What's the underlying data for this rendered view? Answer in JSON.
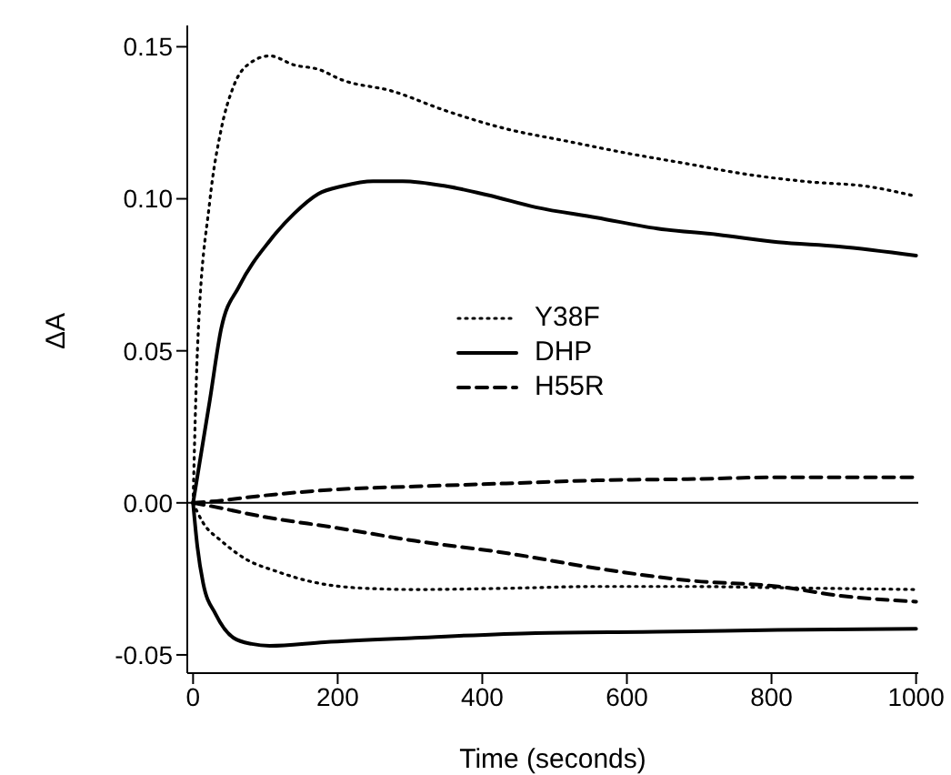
{
  "chart_data": {
    "type": "line",
    "xlabel": "Time (seconds)",
    "ylabel": "ΔA",
    "xlim": [
      -8,
      1003
    ],
    "ylim": [
      -0.056,
      0.157
    ],
    "xticks": [
      0,
      200,
      400,
      600,
      800,
      1000
    ],
    "yticks": [
      {
        "value": -0.05,
        "label": "-0.05"
      },
      {
        "value": 0,
        "label": "0.00"
      },
      {
        "value": 0.05,
        "label": "0.05"
      },
      {
        "value": 0.1,
        "label": "0.10"
      },
      {
        "value": 0.15,
        "label": "0.15"
      }
    ],
    "grid": false,
    "legend": "center",
    "marker": "none",
    "ref_lines": [
      {
        "axis": "y",
        "value": 0,
        "color": "#000000",
        "line_style": "solid"
      }
    ],
    "series": [
      {
        "name": "Y38F",
        "color": "#000000",
        "line_style": "dotted",
        "x": [
          0,
          6,
          23,
          39,
          56,
          81,
          106,
          140,
          173,
          207,
          274,
          349,
          433,
          516,
          600,
          684,
          767,
          851,
          935,
          1000
        ],
        "values": [
          0,
          0.05,
          0.099,
          0.123,
          0.137,
          0.145,
          0.147,
          0.144,
          0.1426,
          0.139,
          0.1355,
          0.129,
          0.123,
          0.119,
          0.115,
          0.1115,
          0.108,
          0.1056,
          0.104,
          0.1008
        ]
      },
      {
        "name": "DHP",
        "color": "#000000",
        "line_style": "solid",
        "x": [
          0,
          23,
          39,
          64,
          106,
          140,
          173,
          207,
          249,
          290,
          349,
          408,
          474,
          558,
          642,
          726,
          809,
          893,
          1000
        ],
        "values": [
          0,
          0.0335,
          0.0574,
          0.0713,
          0.0862,
          0.0952,
          0.1016,
          0.1042,
          0.1058,
          0.1058,
          0.1042,
          0.1012,
          0.0972,
          0.0938,
          0.0902,
          0.0882,
          0.0857,
          0.0843,
          0.0813
        ]
      },
      {
        "name": "H55R",
        "color": "#000000",
        "line_style": "dashed",
        "x": [
          0,
          23,
          98,
          198,
          307,
          433,
          558,
          684,
          809,
          1000
        ],
        "values": [
          0,
          0.0004,
          0.0024,
          0.0044,
          0.0054,
          0.0064,
          0.0074,
          0.0078,
          0.0084,
          0.0084
        ]
      },
      {
        "color": "#000000",
        "line_style": "dotted",
        "x": [
          0,
          14,
          39,
          73,
          115,
          165,
          223,
          307,
          433,
          558,
          684,
          809,
          1000
        ],
        "values": [
          0,
          -0.0066,
          -0.0125,
          -0.0185,
          -0.0225,
          -0.026,
          -0.0279,
          -0.0285,
          -0.0281,
          -0.0275,
          -0.0275,
          -0.0279,
          -0.0285
        ]
      },
      {
        "color": "#000000",
        "line_style": "solid",
        "x": [
          0,
          6,
          14,
          31,
          56,
          81,
          106,
          182,
          307,
          474,
          642,
          809,
          1000
        ],
        "values": [
          0,
          -0.0145,
          -0.0265,
          -0.0365,
          -0.0444,
          -0.0464,
          -0.047,
          -0.0458,
          -0.0444,
          -0.0428,
          -0.0424,
          -0.0418,
          -0.0414
        ]
      },
      {
        "color": "#000000",
        "line_style": "dashed",
        "x": [
          0,
          23,
          98,
          198,
          307,
          433,
          558,
          684,
          809,
          893,
          1000
        ],
        "values": [
          0,
          -0.001,
          -0.0046,
          -0.0082,
          -0.0125,
          -0.0165,
          -0.0215,
          -0.0255,
          -0.0275,
          -0.0305,
          -0.0325
        ]
      }
    ]
  }
}
